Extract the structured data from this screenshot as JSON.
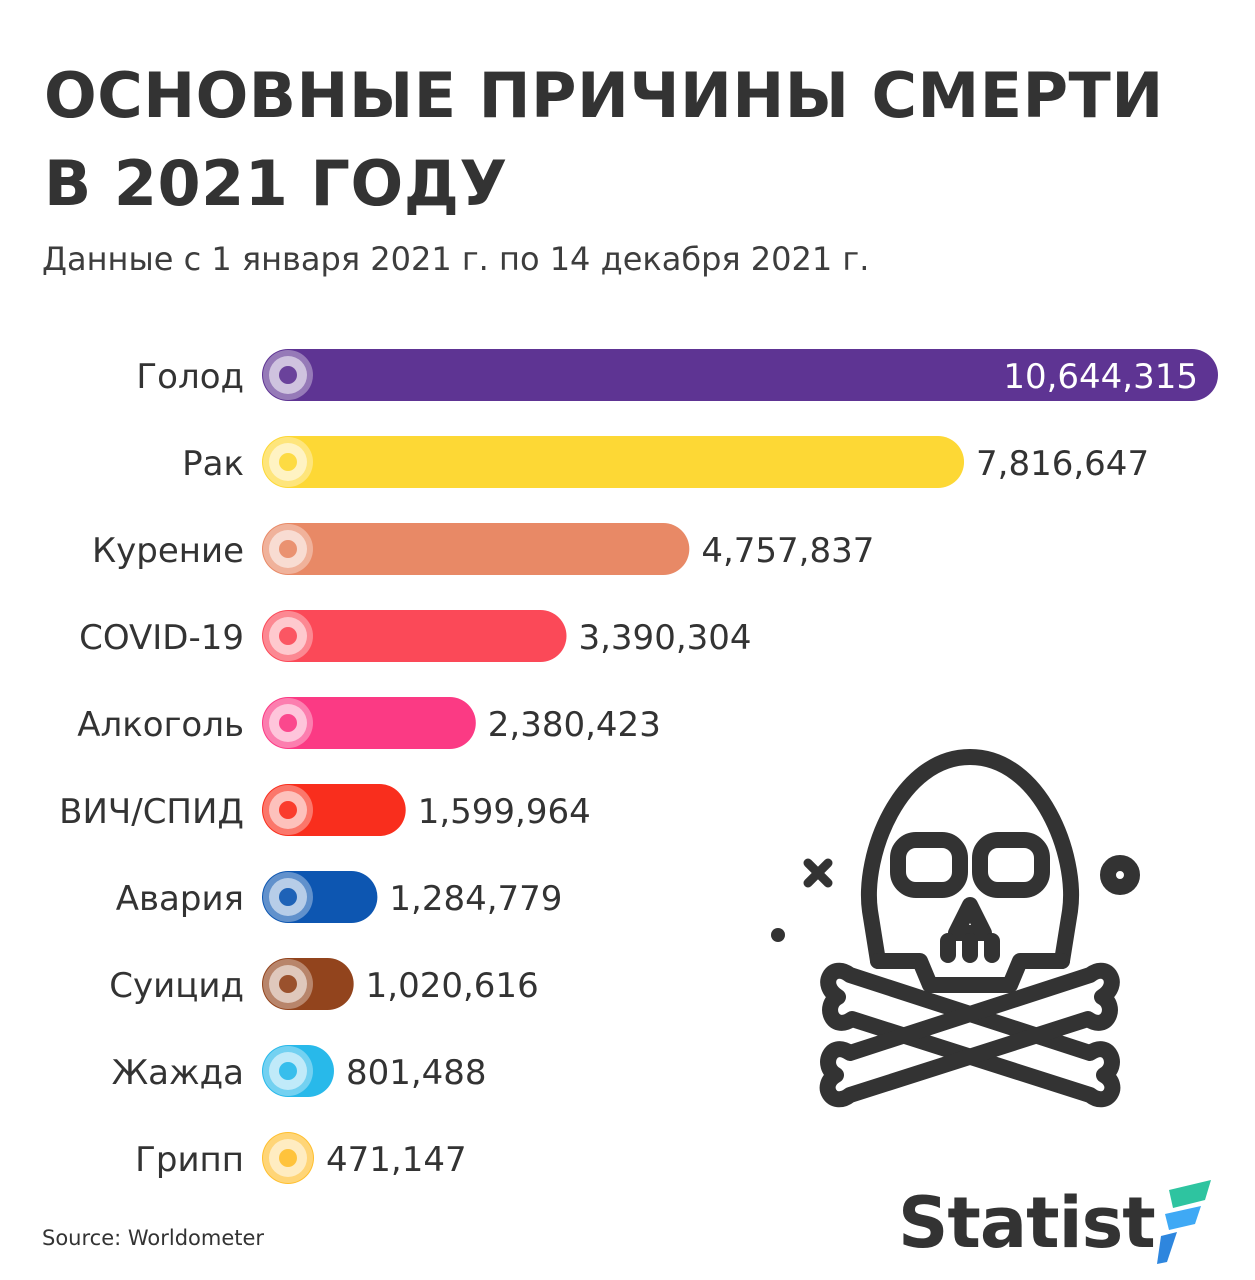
{
  "header": {
    "title_line1": "ОСНОВНЫЕ ПРИЧИНЫ СМЕРТИ",
    "title_line2": "В 2021 ГОДУ",
    "subtitle": "Данные с 1 января 2021 г. по 14 декабря 2021 г."
  },
  "chart_data": {
    "type": "bar",
    "orientation": "horizontal",
    "title": "ОСНОВНЫЕ ПРИЧИНЫ СМЕРТИ В 2021 ГОДУ",
    "subtitle": "Данные с 1 января 2021 г. по 14 декабря 2021 г.",
    "categories": [
      "Голод",
      "Рак",
      "Курение",
      "COVID-19",
      "Алкоголь",
      "ВИЧ/СПИД",
      "Авария",
      "Суицид",
      "Жажда",
      "Грипп"
    ],
    "values": [
      10644315,
      7816647,
      4757837,
      3390304,
      2380423,
      1599964,
      1284779,
      1020616,
      801488,
      471147
    ],
    "value_labels": [
      "10,644,315",
      "7,816,647",
      "4,757,837",
      "3,390,304",
      "2,380,423",
      "1,599,964",
      "1,284,779",
      "1,020,616",
      "801,488",
      "471,147"
    ],
    "colors": [
      "#5e3493",
      "#fdd835",
      "#e88966",
      "#fb4958",
      "#fb3a84",
      "#f92e1d",
      "#0d56b1",
      "#92441d",
      "#28b9ea",
      "#ffbf2e"
    ],
    "icons": [
      "hunger-icon",
      "cancer-icon",
      "smoking-icon",
      "covid-icon",
      "alcohol-icon",
      "hiv-icon",
      "accident-icon",
      "suicide-icon",
      "thirst-icon",
      "flu-icon"
    ],
    "xlim": [
      0,
      10644315
    ],
    "grid": false,
    "legend": "none"
  },
  "footer": {
    "source": "Source: Worldometer",
    "logo": "Statist"
  }
}
